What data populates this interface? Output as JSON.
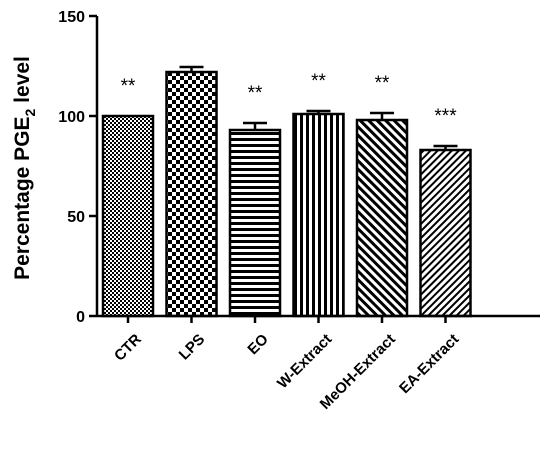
{
  "chart_data": {
    "type": "bar",
    "ylabel_main": "Percentage PGE",
    "ylabel_sub": "2",
    "ylabel_tail": " level",
    "ylim": [
      0,
      150
    ],
    "yticks": [
      "0",
      "50",
      "100",
      "150"
    ],
    "ytick_values": [
      0,
      50,
      100,
      150
    ],
    "categories": [
      "CTR",
      "LPS",
      "EO",
      "W-Extract",
      "MeOH-Extract",
      "EA-Extract"
    ],
    "values": [
      100,
      122,
      93,
      101,
      98,
      83
    ],
    "errors": [
      0,
      2.5,
      3.5,
      1.5,
      3.5,
      2
    ],
    "significance": [
      "**",
      "",
      "**",
      "**",
      "**",
      "***"
    ],
    "patterns": [
      "fine-dots",
      "checker",
      "horizontal-stripes",
      "vertical-stripes",
      "diagonal-left",
      "diagonal-right"
    ]
  }
}
